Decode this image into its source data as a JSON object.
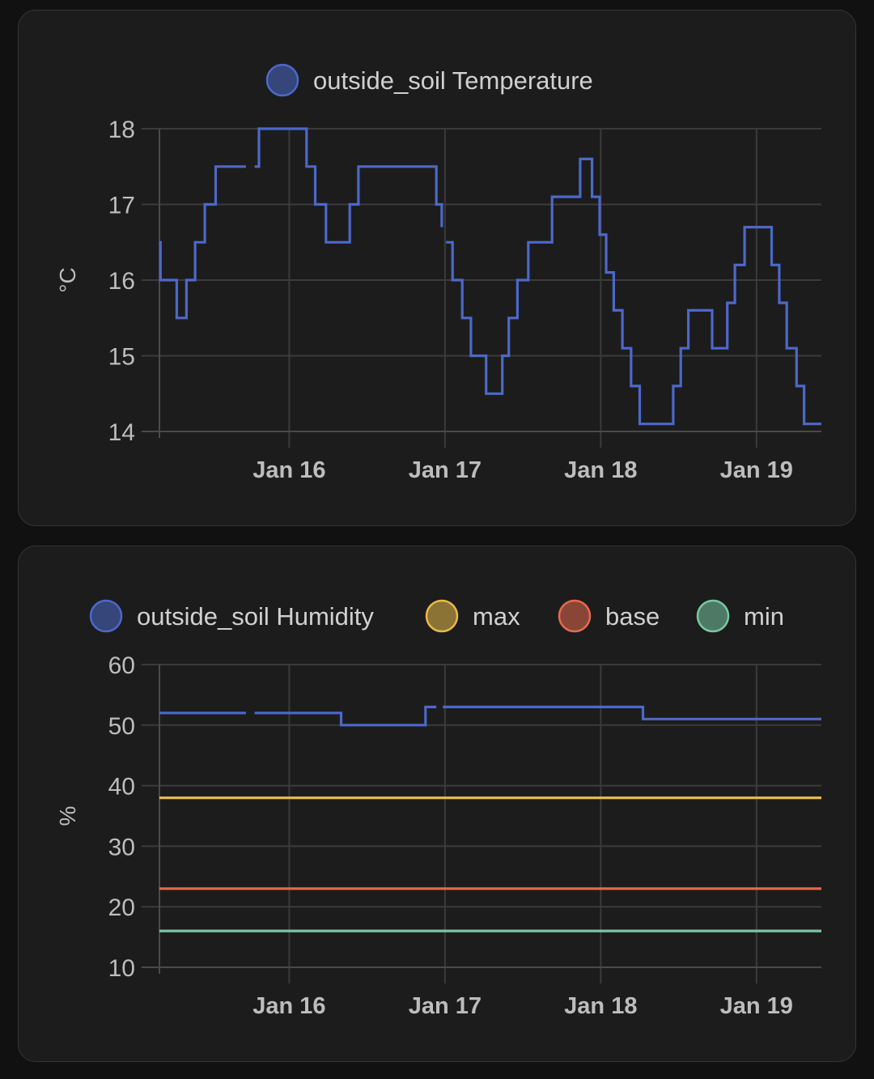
{
  "charts": [
    {
      "name": "temperature",
      "chart_data": {
        "type": "line",
        "step": true,
        "title": "",
        "ylabel": "°C",
        "xlabel": "",
        "ylim": [
          14,
          18
        ],
        "yticks": [
          14,
          15,
          16,
          17,
          18
        ],
        "xlim": [
          "2024-01-15T04:00",
          "2024-01-19T10:00"
        ],
        "xticks": [
          {
            "value": "2024-01-16T00:00",
            "label": "Jan 16"
          },
          {
            "value": "2024-01-17T00:00",
            "label": "Jan 17"
          },
          {
            "value": "2024-01-18T00:00",
            "label": "Jan 18"
          },
          {
            "value": "2024-01-19T00:00",
            "label": "Jan 19"
          }
        ],
        "grid": true,
        "legend_position": "top",
        "series": [
          {
            "name": "outside_soil Temperature",
            "color": "#4c68c9",
            "segments": [
              [
                [
                  "2024-01-15T04:00",
                  16.5
                ],
                [
                  "2024-01-15T04:10",
                  16.0
                ],
                [
                  "2024-01-15T06:40",
                  15.5
                ],
                [
                  "2024-01-15T08:10",
                  16.0
                ],
                [
                  "2024-01-15T09:30",
                  16.5
                ],
                [
                  "2024-01-15T11:00",
                  17.0
                ],
                [
                  "2024-01-15T12:40",
                  17.5
                ],
                [
                  "2024-01-15T17:20",
                  17.5
                ]
              ],
              [
                [
                  "2024-01-15T18:40",
                  17.5
                ],
                [
                  "2024-01-15T19:20",
                  18.0
                ],
                [
                  "2024-01-16T02:40",
                  17.5
                ],
                [
                  "2024-01-16T04:00",
                  17.0
                ],
                [
                  "2024-01-16T05:40",
                  16.5
                ],
                [
                  "2024-01-16T09:20",
                  17.0
                ],
                [
                  "2024-01-16T10:40",
                  17.5
                ],
                [
                  "2024-01-16T22:40",
                  17.0
                ],
                [
                  "2024-01-16T23:30",
                  16.7
                ]
              ],
              [
                [
                  "2024-01-17T00:10",
                  16.5
                ],
                [
                  "2024-01-17T01:10",
                  16.0
                ],
                [
                  "2024-01-17T02:40",
                  15.5
                ],
                [
                  "2024-01-17T04:00",
                  15.0
                ],
                [
                  "2024-01-17T06:20",
                  14.5
                ],
                [
                  "2024-01-17T08:50",
                  15.0
                ],
                [
                  "2024-01-17T09:50",
                  15.5
                ],
                [
                  "2024-01-17T11:10",
                  16.0
                ],
                [
                  "2024-01-17T12:50",
                  16.5
                ],
                [
                  "2024-01-17T16:30",
                  17.1
                ],
                [
                  "2024-01-17T20:50",
                  17.6
                ],
                [
                  "2024-01-17T22:40",
                  17.1
                ],
                [
                  "2024-01-17T23:50",
                  16.6
                ],
                [
                  "2024-01-18T00:50",
                  16.1
                ],
                [
                  "2024-01-18T02:00",
                  15.6
                ],
                [
                  "2024-01-18T03:20",
                  15.1
                ],
                [
                  "2024-01-18T04:40",
                  14.6
                ],
                [
                  "2024-01-18T06:00",
                  14.1
                ],
                [
                  "2024-01-18T11:10",
                  14.6
                ],
                [
                  "2024-01-18T12:20",
                  15.1
                ],
                [
                  "2024-01-18T13:30",
                  15.6
                ],
                [
                  "2024-01-18T17:10",
                  15.1
                ],
                [
                  "2024-01-18T19:30",
                  15.7
                ],
                [
                  "2024-01-18T20:40",
                  16.2
                ],
                [
                  "2024-01-18T22:10",
                  16.7
                ],
                [
                  "2024-01-19T02:20",
                  16.2
                ],
                [
                  "2024-01-19T03:30",
                  15.7
                ],
                [
                  "2024-01-19T04:40",
                  15.1
                ],
                [
                  "2024-01-19T06:10",
                  14.6
                ],
                [
                  "2024-01-19T07:20",
                  14.1
                ],
                [
                  "2024-01-19T10:00",
                  14.1
                ]
              ]
            ]
          }
        ]
      }
    },
    {
      "name": "humidity",
      "chart_data": {
        "type": "line",
        "step": true,
        "title": "",
        "ylabel": "%",
        "xlabel": "",
        "ylim": [
          10,
          60
        ],
        "yticks": [
          10,
          20,
          30,
          40,
          50,
          60
        ],
        "xlim": [
          "2024-01-15T04:00",
          "2024-01-19T10:00"
        ],
        "xticks": [
          {
            "value": "2024-01-16T00:00",
            "label": "Jan 16"
          },
          {
            "value": "2024-01-17T00:00",
            "label": "Jan 17"
          },
          {
            "value": "2024-01-18T00:00",
            "label": "Jan 18"
          },
          {
            "value": "2024-01-19T00:00",
            "label": "Jan 19"
          }
        ],
        "grid": true,
        "legend_position": "top",
        "series": [
          {
            "name": "outside_soil Humidity",
            "color": "#4c68c9",
            "segments": [
              [
                [
                  "2024-01-15T04:00",
                  52
                ],
                [
                  "2024-01-15T17:20",
                  52
                ]
              ],
              [
                [
                  "2024-01-15T18:40",
                  52
                ],
                [
                  "2024-01-16T08:00",
                  50
                ],
                [
                  "2024-01-16T21:00",
                  53
                ],
                [
                  "2024-01-16T22:40",
                  53
                ]
              ],
              [
                [
                  "2024-01-16T23:40",
                  53
                ],
                [
                  "2024-01-18T06:30",
                  51
                ],
                [
                  "2024-01-19T10:00",
                  51
                ]
              ]
            ]
          },
          {
            "name": "max",
            "color": "#e8b94a",
            "segments": [
              [
                [
                  "2024-01-15T04:00",
                  38
                ],
                [
                  "2024-01-19T10:00",
                  38
                ]
              ]
            ]
          },
          {
            "name": "base",
            "color": "#e46a4f",
            "segments": [
              [
                [
                  "2024-01-15T04:00",
                  23
                ],
                [
                  "2024-01-19T10:00",
                  23
                ]
              ]
            ]
          },
          {
            "name": "min",
            "color": "#78c8a2",
            "segments": [
              [
                [
                  "2024-01-15T04:00",
                  16
                ],
                [
                  "2024-01-19T10:00",
                  16
                ]
              ]
            ]
          }
        ]
      }
    }
  ]
}
